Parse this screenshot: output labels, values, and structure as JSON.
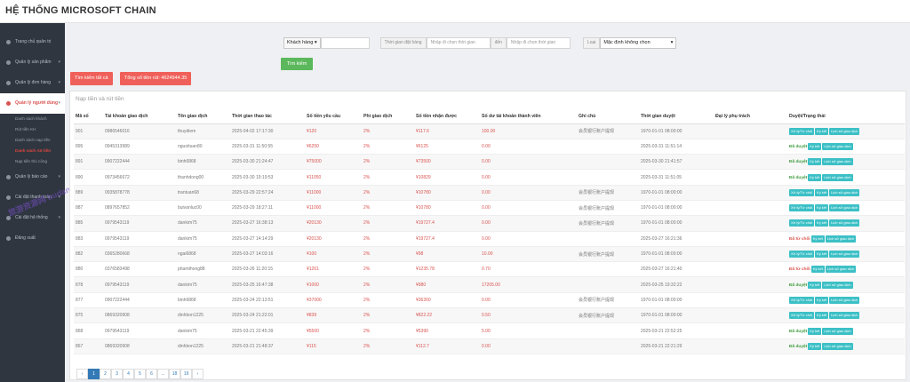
{
  "app": {
    "title": "HỆ THỐNG MICROSOFT CHAIN"
  },
  "sidebar": {
    "items": [
      {
        "label": "Trang chủ quản trị"
      },
      {
        "label": "Quản lý sản phẩm"
      },
      {
        "label": "Quản lý đơn hàng"
      },
      {
        "label": "Quản lý người dùng"
      },
      {
        "label": "Quản lý báo cáo"
      },
      {
        "label": "Cài đặt thanh toán"
      },
      {
        "label": "Cài đặt hệ thống"
      },
      {
        "label": "Đăng xuất"
      }
    ],
    "sub": [
      {
        "label": "Danh sách khách"
      },
      {
        "label": "Rút tiền KH"
      },
      {
        "label": "Danh sách nạp tiền"
      },
      {
        "label": "Danh sách rút tiền"
      },
      {
        "label": "Nạp tiền thủ công"
      }
    ],
    "watermark": "旅游资源网 budanw.cc"
  },
  "filters": {
    "customer_select": "Khách hàng",
    "time_label": "Thời gian đặt hàng",
    "from_placeholder": "Nhập đi chọn thời gian",
    "to_label": "đến",
    "to_placeholder": "Nhập đi chọn thời gian",
    "type_label": "Loại",
    "type_select": "Mặc định không chọn",
    "search_button": "Tìm kiếm"
  },
  "actions": {
    "search_all": "Tìm kiếm tất cả",
    "total": "Tổng số tiền rút: 4624944.35"
  },
  "panel": {
    "title": "Nạp tiền và rút tiền"
  },
  "table": {
    "headers": [
      "Mã số",
      "Tài khoản giao dịch",
      "Tên giao dịch",
      "Thời gian thao tác",
      "Số tiền yêu cầu",
      "Phí giao dịch",
      "Số tiền nhận được",
      "Số dư tài khoản thành viên",
      "Ghi chú",
      "Thời gian duyệt",
      "Đại lý phụ trách",
      "Duyệt/Trạng thái"
    ],
    "buttons": {
      "approve": "Xử lý/Từ chối",
      "sign": "Ký kết",
      "history": "Lịch sử giao dịch"
    },
    "rows": [
      {
        "id": "901",
        "acc": "0986546016",
        "name": "thuydiem",
        "time": "2025-04-02 17:17:30",
        "req": "¥120",
        "fee": "2%",
        "recv": "¥117.6",
        "bal": "100.00",
        "note": "会员银行账户提现",
        "appr": "1970-01-01 08:00:00",
        "agent": "",
        "status": "",
        "st": "pending"
      },
      {
        "id": "895",
        "acc": "0945313989",
        "name": "nguoituan80",
        "time": "2025-03-31 11:50:55",
        "req": "¥6250",
        "fee": "2%",
        "recv": "¥6125",
        "bal": "0.00",
        "note": "",
        "appr": "2025-03-31 11:51:14",
        "agent": "",
        "status": "Đã duyệt",
        "st": "ok"
      },
      {
        "id": "891",
        "acc": "0907222444",
        "name": "binh6868",
        "time": "2025-03-30 21:24:47",
        "req": "¥75000",
        "fee": "2%",
        "recv": "¥73500",
        "bal": "0.00",
        "note": "",
        "appr": "2025-03-30 21:41:57",
        "agent": "",
        "status": "Đã duyệt",
        "st": "ok"
      },
      {
        "id": "890",
        "acc": "0973456672",
        "name": "thanhdong00",
        "time": "2025-03-30 19:19:53",
        "req": "¥11050",
        "fee": "2%",
        "recv": "¥10829",
        "bal": "0.00",
        "note": "",
        "appr": "2025-03-31 11:51:05",
        "agent": "",
        "status": "Đã duyệt",
        "st": "ok"
      },
      {
        "id": "889",
        "acc": "0935878778",
        "name": "trantuan68",
        "time": "2025-03-29 22:57:24",
        "req": "¥11000",
        "fee": "2%",
        "recv": "¥10780",
        "bal": "0.00",
        "note": "会员银行账户提现",
        "appr": "1970-01-01 08:00:00",
        "agent": "",
        "status": "",
        "st": "pending"
      },
      {
        "id": "887",
        "acc": "0897657852",
        "name": "buivanluc00",
        "time": "2025-03-29 18:27:11",
        "req": "¥11000",
        "fee": "2%",
        "recv": "¥10780",
        "bal": "0.00",
        "note": "会员银行账户提现",
        "appr": "1970-01-01 08:00:00",
        "agent": "",
        "status": "",
        "st": "pending"
      },
      {
        "id": "885",
        "acc": "0979543119",
        "name": "dankim75",
        "time": "2025-03-27 16:38:13",
        "req": "¥20130",
        "fee": "2%",
        "recv": "¥19727.4",
        "bal": "0.00",
        "note": "会员银行账户提现",
        "appr": "1970-01-01 08:00:00",
        "agent": "",
        "status": "",
        "st": "pending"
      },
      {
        "id": "883",
        "acc": "0979543119",
        "name": "dankim75",
        "time": "2025-03-27 14:14:29",
        "req": "¥20130",
        "fee": "2%",
        "recv": "¥19727.4",
        "bal": "0.00",
        "note": "",
        "appr": "2025-03-27 16:21:36",
        "agent": "",
        "status": "Đã từ chối",
        "st": "no"
      },
      {
        "id": "882",
        "acc": "0365280668",
        "name": "ngai6868",
        "time": "2025-03-27 14:03:16",
        "req": "¥100",
        "fee": "2%",
        "recv": "¥98",
        "bal": "10.00",
        "note": "会员银行账户提现",
        "appr": "1970-01-01 08:00:00",
        "agent": "",
        "status": "",
        "st": "pending"
      },
      {
        "id": "880",
        "acc": "0376583498",
        "name": "phamthong88",
        "time": "2025-03-26 11:20:15",
        "req": "¥1261",
        "fee": "2%",
        "recv": "¥1235.78",
        "bal": "0.70",
        "note": "",
        "appr": "2025-03-27 16:21:40",
        "agent": "",
        "status": "Đã từ chối",
        "st": "no"
      },
      {
        "id": "878",
        "acc": "0979543119",
        "name": "dankim75",
        "time": "2025-03-25 16:47:38",
        "req": "¥1000",
        "fee": "2%",
        "recv": "¥980",
        "bal": "17205.00",
        "note": "",
        "appr": "2025-03-25 19:32:22",
        "agent": "",
        "status": "Đã duyệt",
        "st": "ok"
      },
      {
        "id": "877",
        "acc": "0907222444",
        "name": "binh6868",
        "time": "2025-03-24 22:13:51",
        "req": "¥37000",
        "fee": "2%",
        "recv": "¥36260",
        "bal": "0.00",
        "note": "会员银行账户提现",
        "appr": "1970-01-01 08:00:00",
        "agent": "",
        "status": "",
        "st": "pending"
      },
      {
        "id": "875",
        "acc": "0869320908",
        "name": "dinhbon1225",
        "time": "2025-03-24 21:22:01",
        "req": "¥839",
        "fee": "2%",
        "recv": "¥822.22",
        "bal": "0.50",
        "note": "会员银行账户提现",
        "appr": "1970-01-01 08:00:00",
        "agent": "",
        "status": "",
        "st": "pending"
      },
      {
        "id": "868",
        "acc": "0979543119",
        "name": "dankim75",
        "time": "2025-03-21 22:45:39",
        "req": "¥5500",
        "fee": "2%",
        "recv": "¥5390",
        "bal": "5.00",
        "note": "",
        "appr": "2025-03-21 22:52:25",
        "agent": "",
        "status": "Đã duyệt",
        "st": "ok"
      },
      {
        "id": "867",
        "acc": "0869320908",
        "name": "dinhbon1225",
        "time": "2025-03-21 21:48:37",
        "req": "¥115",
        "fee": "2%",
        "recv": "¥112.7",
        "bal": "0.00",
        "note": "",
        "appr": "2025-03-21 22:21:29",
        "agent": "",
        "status": "Đã duyệt",
        "st": "ok"
      }
    ]
  },
  "pagination": [
    "‹",
    "1",
    "2",
    "3",
    "4",
    "5",
    "6",
    "...",
    "18",
    "19",
    "›"
  ],
  "pagination_active": "1"
}
